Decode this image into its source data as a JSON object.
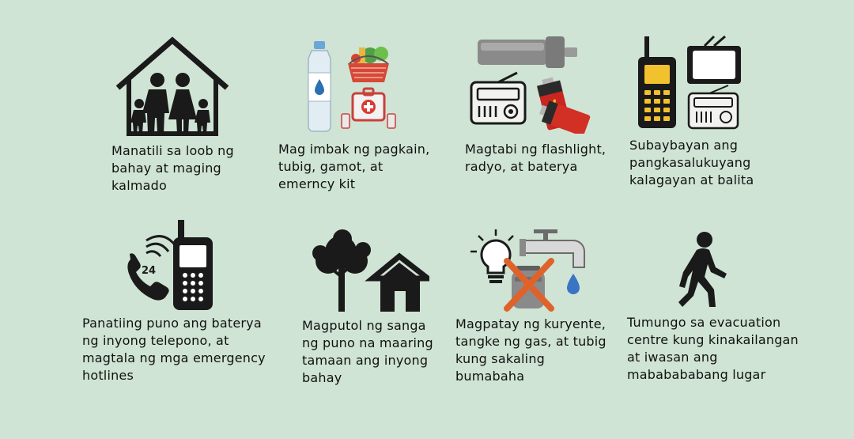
{
  "tips": [
    {
      "icon": "family-house-icon",
      "lines": [
        "Manatili sa loob ng",
        "bahay at maging",
        "kalmado"
      ]
    },
    {
      "icon": "supplies-icon",
      "lines": [
        "Mag imbak ng pagkain,",
        "tubig, gamot, at",
        "emerncy kit"
      ]
    },
    {
      "icon": "flashlight-radio-battery-icon",
      "lines": [
        "Magtabi ng flashlight,",
        "radyo, at baterya"
      ]
    },
    {
      "icon": "walkie-tv-radio-icon",
      "lines": [
        "Subaybayan ang",
        "pangkasalukuyang",
        "kalagayan at balita"
      ]
    },
    {
      "icon": "phone-hotline-icon",
      "lines": [
        "Panatiing puno ang baterya",
        "ng inyong telepono, at",
        "magtala ng mga emergency",
        "hotlines"
      ]
    },
    {
      "icon": "tree-house-icon",
      "lines": [
        "Magputol ng sanga",
        "ng puno na maaring",
        "tamaan ang inyong",
        "bahay"
      ]
    },
    {
      "icon": "utilities-off-icon",
      "lines": [
        "Magpatay ng kuryente,",
        "tangke ng gas, at tubig",
        "kung sakaling",
        "bumabaha"
      ]
    },
    {
      "icon": "walking-person-icon",
      "lines": [
        "Tumungo sa evacuation",
        "centre kung kinakailangan",
        "at iwasan ang",
        "mababababang lugar"
      ]
    }
  ]
}
